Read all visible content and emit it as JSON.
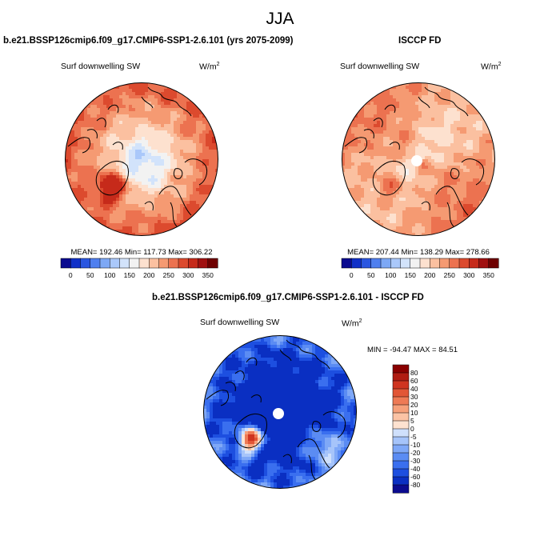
{
  "figure": {
    "title": "JJA"
  },
  "panels": [
    {
      "id": "model",
      "title": "b.e21.BSSP126cmip6.f09_g17.CMIP6-SSP1-2.6.101 (yrs 2075-2099)",
      "variable": "Surf downwelling SW",
      "units_base": "W/m",
      "units_exp": "2",
      "stats_text": "MEAN= 192.46  Min= 117.73  Max= 306.22"
    },
    {
      "id": "obs",
      "title": "ISCCP FD",
      "variable": "Surf downwelling SW",
      "units_base": "W/m",
      "units_exp": "2",
      "stats_text": "MEAN= 207.44  Min= 138.29  Max= 278.66"
    },
    {
      "id": "diff",
      "title": "b.e21.BSSP126cmip6.f09_g17.CMIP6-SSP1-2.6.101 - ISCCP FD",
      "variable": "Surf downwelling SW",
      "units_base": "W/m",
      "units_exp": "2",
      "stats_text": "MIN = -94.47 MAX =  84.51"
    }
  ],
  "colorbar_abs": {
    "colors": [
      "#0b0b8f",
      "#1030c8",
      "#2a56e0",
      "#4f7fef",
      "#7da8f5",
      "#aac8fa",
      "#d2e3fb",
      "#f2f2f2",
      "#fde1cf",
      "#fbc0a0",
      "#f59a72",
      "#ec7250",
      "#dc4a2e",
      "#c62a1a",
      "#a01010",
      "#6e0000"
    ],
    "tick_labels": [
      "0",
      "50",
      "100",
      "150",
      "200",
      "250",
      "300",
      "350"
    ]
  },
  "colorbar_diff": {
    "colors": [
      "#0b0b8f",
      "#0a2fc2",
      "#1d4fe0",
      "#3a6fef",
      "#5b8cf3",
      "#7fa8f7",
      "#a6c4fa",
      "#cfe0fc",
      "#fde2d0",
      "#fbc3a5",
      "#f6a07a",
      "#ee7a55",
      "#e25636",
      "#cf3420",
      "#b01c12",
      "#8a0000"
    ],
    "tick_labels": [
      "80",
      "60",
      "40",
      "30",
      "20",
      "10",
      "5",
      "0",
      "-5",
      "-10",
      "-20",
      "-30",
      "-40",
      "-60",
      "-80"
    ]
  },
  "maps": {
    "model_palette": [
      "#aac8fa",
      "#d2e3fb",
      "#f2f2f2",
      "#fde1cf",
      "#fbc0a0",
      "#f59a72",
      "#ec7250",
      "#dc4a2e",
      "#c62a1a"
    ],
    "obs_palette": [
      "#d2e3fb",
      "#f2f2f2",
      "#fde1cf",
      "#fbc0a0",
      "#f59a72",
      "#ec7250",
      "#dc4a2e",
      "#c62a1a"
    ],
    "diff_palette": [
      "#0a2fc2",
      "#1d4fe0",
      "#3a6fef",
      "#5b8cf3",
      "#7fa8f7",
      "#a6c4fa",
      "#cfe0fc",
      "#fde2d0",
      "#fbc3a5",
      "#f6a07a",
      "#ee7a55",
      "#e25636",
      "#cf3420"
    ],
    "land_outline_color": "#000000",
    "missing_color": "#ffffff"
  }
}
